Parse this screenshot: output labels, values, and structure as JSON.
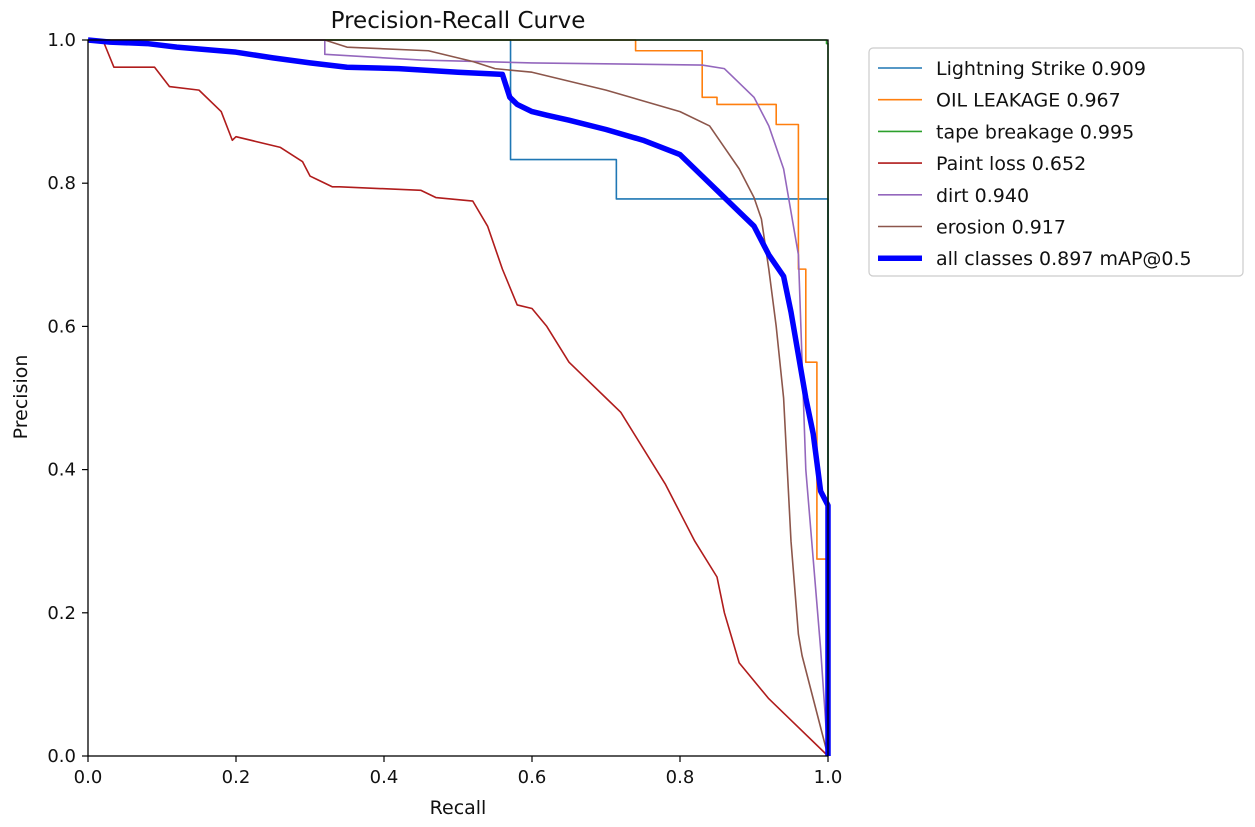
{
  "chart_data": {
    "type": "line",
    "title": "Precision-Recall Curve",
    "xlabel": "Recall",
    "ylabel": "Precision",
    "xlim": [
      0,
      1
    ],
    "ylim": [
      0,
      1
    ],
    "xticks": [
      0.0,
      0.2,
      0.4,
      0.6,
      0.8,
      1.0
    ],
    "yticks": [
      0.0,
      0.2,
      0.4,
      0.6,
      0.8,
      1.0
    ],
    "tick_labels_x": [
      "0.0",
      "0.2",
      "0.4",
      "0.6",
      "0.8",
      "1.0"
    ],
    "tick_labels_y": [
      "0.0",
      "0.2",
      "0.4",
      "0.6",
      "0.8",
      "1.0"
    ],
    "legend_position": "outside-top-right",
    "series": [
      {
        "name": "Lightning Strike 0.909",
        "color": "#1f77b4",
        "width": "thin",
        "x": [
          0.0,
          0.571,
          0.571,
          0.714,
          0.714,
          1.0,
          1.0
        ],
        "y": [
          1.0,
          1.0,
          0.833,
          0.833,
          0.778,
          0.778,
          0.0
        ]
      },
      {
        "name": "OIL LEAKAGE 0.967",
        "color": "#ff7f0e",
        "width": "thin",
        "x": [
          0.0,
          0.74,
          0.74,
          0.83,
          0.83,
          0.85,
          0.85,
          0.93,
          0.93,
          0.96,
          0.96,
          0.97,
          0.97,
          0.985,
          0.985,
          1.0,
          1.0
        ],
        "y": [
          1.0,
          1.0,
          0.985,
          0.985,
          0.92,
          0.92,
          0.91,
          0.91,
          0.882,
          0.882,
          0.68,
          0.68,
          0.55,
          0.55,
          0.275,
          0.275,
          0.0
        ]
      },
      {
        "name": "tape breakage 0.995",
        "color": "#2ca02c",
        "width": "thin",
        "x": [
          0.0,
          0.998,
          0.998,
          1.0,
          1.0
        ],
        "y": [
          1.0,
          1.0,
          0.995,
          0.995,
          0.0
        ]
      },
      {
        "name": "Paint loss 0.652",
        "color": "#b01c1c",
        "width": "thin",
        "x": [
          0.0,
          0.02,
          0.035,
          0.09,
          0.11,
          0.15,
          0.18,
          0.195,
          0.2,
          0.26,
          0.29,
          0.3,
          0.31,
          0.33,
          0.34,
          0.45,
          0.47,
          0.52,
          0.54,
          0.56,
          0.58,
          0.6,
          0.62,
          0.65,
          0.7,
          0.72,
          0.78,
          0.8,
          0.82,
          0.85,
          0.86,
          0.88,
          0.92,
          0.95,
          1.0
        ],
        "y": [
          1.0,
          1.0,
          0.962,
          0.962,
          0.935,
          0.93,
          0.9,
          0.86,
          0.865,
          0.85,
          0.83,
          0.81,
          0.805,
          0.795,
          0.795,
          0.79,
          0.78,
          0.775,
          0.74,
          0.68,
          0.63,
          0.625,
          0.6,
          0.55,
          0.5,
          0.48,
          0.38,
          0.34,
          0.3,
          0.25,
          0.2,
          0.13,
          0.08,
          0.05,
          0.0
        ]
      },
      {
        "name": "dirt 0.940",
        "color": "#9467bd",
        "width": "thin",
        "x": [
          0.0,
          0.32,
          0.32,
          0.45,
          0.6,
          0.83,
          0.86,
          0.87,
          0.9,
          0.91,
          0.92,
          0.93,
          0.94,
          0.95,
          0.96,
          0.97,
          0.99,
          1.0
        ],
        "y": [
          1.0,
          1.0,
          0.98,
          0.972,
          0.968,
          0.965,
          0.96,
          0.95,
          0.92,
          0.9,
          0.88,
          0.85,
          0.82,
          0.76,
          0.7,
          0.4,
          0.15,
          0.0
        ]
      },
      {
        "name": "erosion 0.917",
        "color": "#8c564b",
        "width": "thin",
        "x": [
          0.0,
          0.32,
          0.35,
          0.46,
          0.52,
          0.55,
          0.6,
          0.7,
          0.8,
          0.84,
          0.86,
          0.88,
          0.9,
          0.91,
          0.92,
          0.93,
          0.94,
          0.95,
          0.96,
          0.965,
          1.0
        ],
        "y": [
          1.0,
          1.0,
          0.99,
          0.985,
          0.97,
          0.96,
          0.955,
          0.93,
          0.9,
          0.88,
          0.85,
          0.82,
          0.78,
          0.75,
          0.68,
          0.6,
          0.5,
          0.3,
          0.17,
          0.14,
          0.0
        ]
      },
      {
        "name": "all classes 0.897 mAP@0.5",
        "color": "#0000ff",
        "width": "thick",
        "x": [
          0.0,
          0.03,
          0.08,
          0.12,
          0.2,
          0.25,
          0.3,
          0.35,
          0.42,
          0.5,
          0.56,
          0.57,
          0.58,
          0.6,
          0.62,
          0.65,
          0.7,
          0.75,
          0.8,
          0.83,
          0.85,
          0.88,
          0.9,
          0.92,
          0.94,
          0.95,
          0.96,
          0.97,
          0.98,
          0.99,
          1.0,
          1.0
        ],
        "y": [
          1.0,
          0.997,
          0.995,
          0.99,
          0.983,
          0.975,
          0.968,
          0.962,
          0.96,
          0.955,
          0.952,
          0.92,
          0.91,
          0.9,
          0.895,
          0.888,
          0.875,
          0.86,
          0.84,
          0.81,
          0.79,
          0.76,
          0.74,
          0.7,
          0.67,
          0.62,
          0.56,
          0.5,
          0.45,
          0.37,
          0.35,
          0.0
        ]
      }
    ]
  }
}
